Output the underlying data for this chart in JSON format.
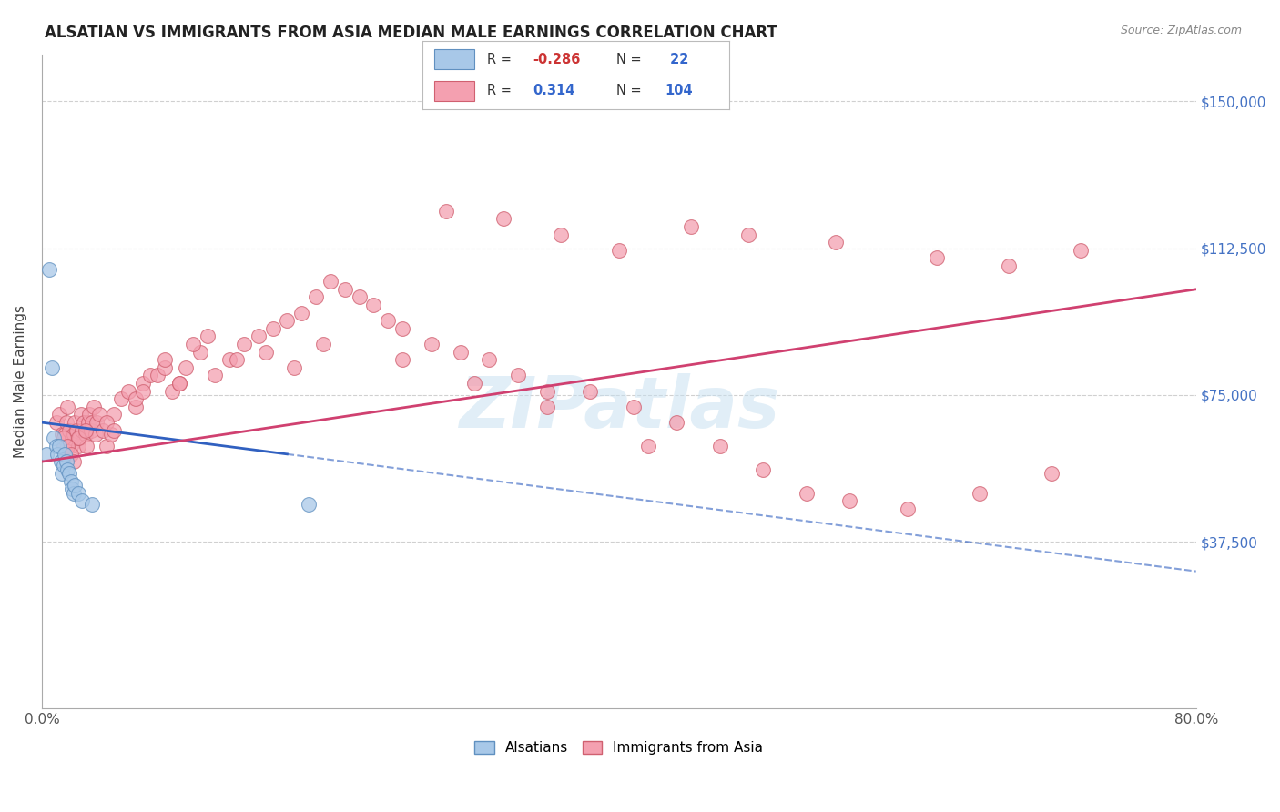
{
  "title": "ALSATIAN VS IMMIGRANTS FROM ASIA MEDIAN MALE EARNINGS CORRELATION CHART",
  "source": "Source: ZipAtlas.com",
  "ylabel": "Median Male Earnings",
  "yticks": [
    0,
    37500,
    75000,
    112500,
    150000
  ],
  "ytick_labels": [
    "",
    "$37,500",
    "$75,000",
    "$112,500",
    "$150,000"
  ],
  "blue_color": "#a8c8e8",
  "pink_color": "#f4a0b0",
  "blue_edge": "#6090c0",
  "pink_edge": "#d06070",
  "trend_blue": "#3060c0",
  "trend_pink": "#d04070",
  "watermark": "ZIPatlas",
  "blue_x": [
    0.3,
    0.5,
    0.7,
    0.8,
    1.0,
    1.1,
    1.2,
    1.3,
    1.4,
    1.5,
    1.6,
    1.7,
    1.8,
    1.9,
    2.0,
    2.1,
    2.2,
    2.3,
    2.5,
    2.8,
    3.5,
    18.5
  ],
  "blue_y": [
    60000,
    107000,
    82000,
    64000,
    62000,
    60000,
    62000,
    58000,
    55000,
    57000,
    60000,
    58000,
    56000,
    55000,
    53000,
    51000,
    50000,
    52000,
    50000,
    48000,
    47000,
    47000
  ],
  "pink_x": [
    1.0,
    1.2,
    1.4,
    1.5,
    1.6,
    1.7,
    1.8,
    1.9,
    2.0,
    2.1,
    2.2,
    2.3,
    2.4,
    2.5,
    2.6,
    2.7,
    2.8,
    2.9,
    3.0,
    3.1,
    3.2,
    3.3,
    3.4,
    3.5,
    3.6,
    3.7,
    3.8,
    4.0,
    4.2,
    4.5,
    4.8,
    5.0,
    5.5,
    6.0,
    6.5,
    7.0,
    7.5,
    8.0,
    8.5,
    9.0,
    9.5,
    10.0,
    11.0,
    12.0,
    13.0,
    14.0,
    15.0,
    16.0,
    17.0,
    18.0,
    19.0,
    20.0,
    21.0,
    22.0,
    23.0,
    24.0,
    25.0,
    27.0,
    29.0,
    31.0,
    33.0,
    35.0,
    38.0,
    41.0,
    44.0,
    47.0,
    50.0,
    53.0,
    56.0,
    60.0,
    65.0,
    70.0,
    28.0,
    32.0,
    36.0,
    40.0,
    45.0,
    49.0,
    55.0,
    62.0,
    67.0,
    72.0,
    10.5,
    11.5,
    13.5,
    15.5,
    17.5,
    19.5,
    8.5,
    9.5,
    6.5,
    7.0,
    4.5,
    5.0,
    2.5,
    3.0,
    1.5,
    1.8,
    2.0,
    2.2,
    25.0,
    30.0,
    35.0,
    42.0
  ],
  "pink_y": [
    68000,
    70000,
    65000,
    62000,
    65000,
    68000,
    72000,
    66000,
    62000,
    64000,
    65000,
    68000,
    66000,
    62000,
    64000,
    70000,
    66000,
    68000,
    65000,
    62000,
    68000,
    70000,
    66000,
    68000,
    72000,
    65000,
    68000,
    70000,
    66000,
    62000,
    65000,
    70000,
    74000,
    76000,
    72000,
    78000,
    80000,
    80000,
    82000,
    76000,
    78000,
    82000,
    86000,
    80000,
    84000,
    88000,
    90000,
    92000,
    94000,
    96000,
    100000,
    104000,
    102000,
    100000,
    98000,
    94000,
    92000,
    88000,
    86000,
    84000,
    80000,
    76000,
    76000,
    72000,
    68000,
    62000,
    56000,
    50000,
    48000,
    46000,
    50000,
    55000,
    122000,
    120000,
    116000,
    112000,
    118000,
    116000,
    114000,
    110000,
    108000,
    112000,
    88000,
    90000,
    84000,
    86000,
    82000,
    88000,
    84000,
    78000,
    74000,
    76000,
    68000,
    66000,
    64000,
    66000,
    64000,
    62000,
    60000,
    58000,
    84000,
    78000,
    72000,
    62000
  ],
  "xlim": [
    0,
    80
  ],
  "ylim": [
    -5000,
    162000
  ],
  "xticklabels_left": "0.0%",
  "xticklabels_right": "80.0%"
}
